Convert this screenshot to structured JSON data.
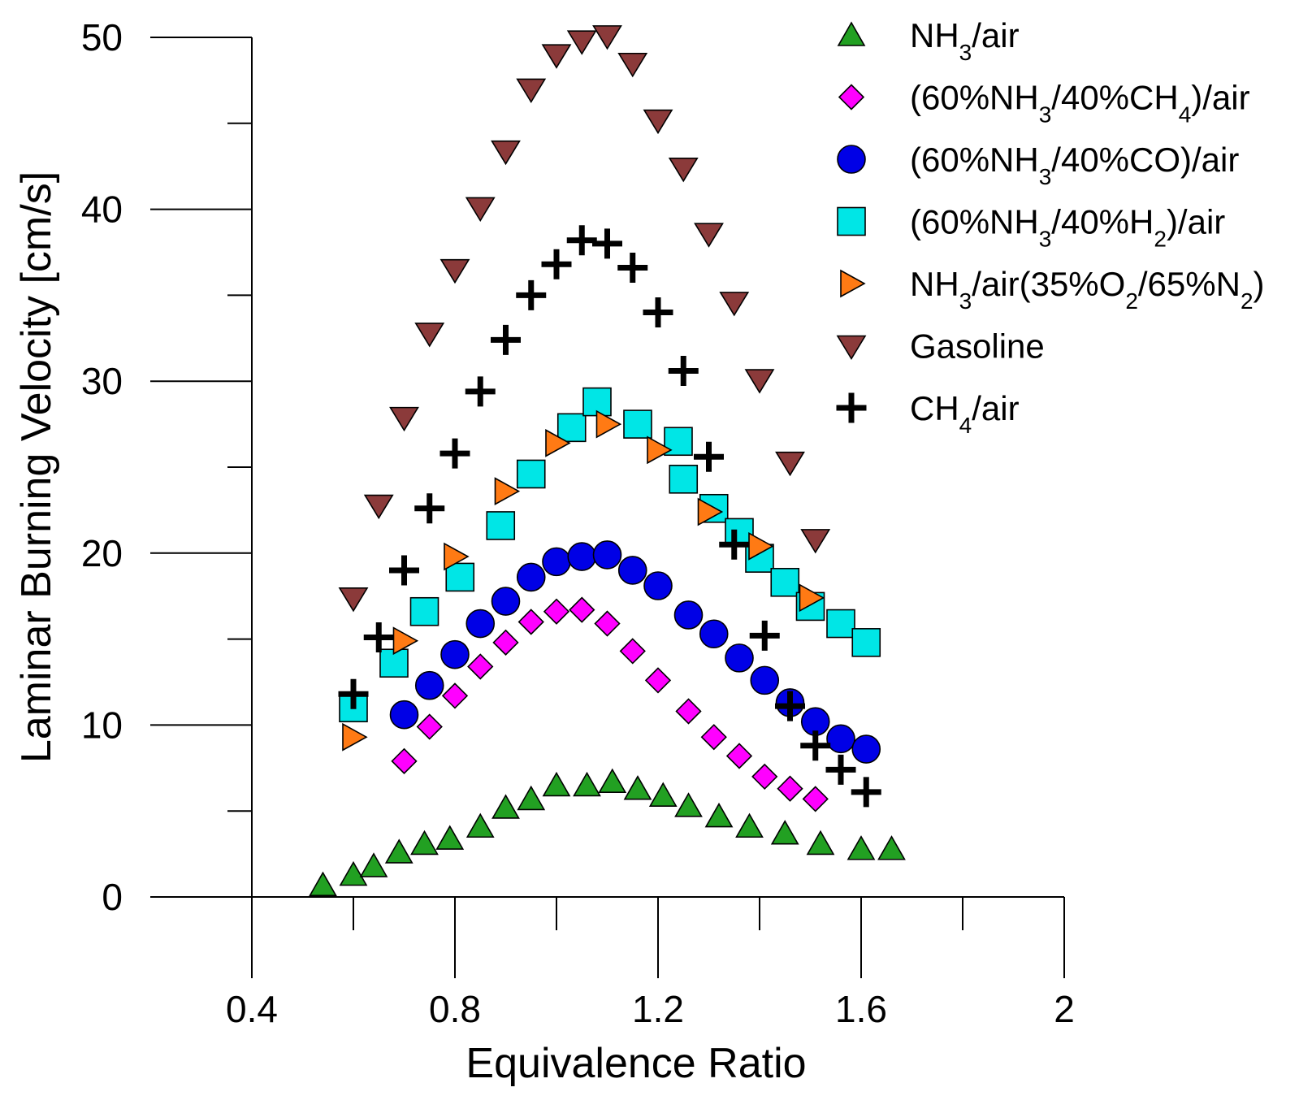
{
  "chart_data": {
    "type": "scatter",
    "title": "",
    "xlabel": "Equivalence Ratio",
    "ylabel": "Laminar Burning Velocity [cm/s]",
    "xlim": [
      0.2,
      2.0
    ],
    "ylim": [
      0,
      50
    ],
    "x_major_ticks": [
      {
        "value": 0.4,
        "label": "0.4"
      },
      {
        "value": 0.8,
        "label": "0.8"
      },
      {
        "value": 1.2,
        "label": "1.2"
      },
      {
        "value": 1.6,
        "label": "1.6"
      },
      {
        "value": 2.0,
        "label": "2"
      }
    ],
    "x_minor_ticks": [
      0.6,
      1.0,
      1.4,
      1.8
    ],
    "y_major_ticks": [
      {
        "value": 0,
        "label": "0"
      },
      {
        "value": 10,
        "label": "10"
      },
      {
        "value": 20,
        "label": "20"
      },
      {
        "value": 30,
        "label": "30"
      },
      {
        "value": 40,
        "label": "40"
      },
      {
        "value": 50,
        "label": "50"
      }
    ],
    "y_minor_ticks": [
      5,
      15,
      25,
      35,
      45
    ],
    "legend_position": "top-right",
    "series": [
      {
        "name": "NH3/air",
        "label_parts": [
          {
            "text": "NH",
            "sub": false
          },
          {
            "text": "3",
            "sub": true
          },
          {
            "text": "/air",
            "sub": false
          }
        ],
        "marker": "triangle-up",
        "color": "#22a022",
        "x": [
          0.54,
          0.6,
          0.64,
          0.69,
          0.74,
          0.79,
          0.85,
          0.9,
          0.95,
          1.0,
          1.06,
          1.11,
          1.16,
          1.21,
          1.26,
          1.32,
          1.38,
          1.45,
          1.52,
          1.6,
          1.66
        ],
        "y": [
          0.7,
          1.3,
          1.8,
          2.6,
          3.1,
          3.4,
          4.1,
          5.2,
          5.7,
          6.5,
          6.5,
          6.7,
          6.3,
          5.9,
          5.3,
          4.7,
          4.1,
          3.7,
          3.1,
          2.8,
          2.8
        ]
      },
      {
        "name": "(60%NH3/40%CH4)/air",
        "label_parts": [
          {
            "text": "(60%NH",
            "sub": false
          },
          {
            "text": "3",
            "sub": true
          },
          {
            "text": "/40%CH",
            "sub": false
          },
          {
            "text": "4",
            "sub": true
          },
          {
            "text": ")/air",
            "sub": false
          }
        ],
        "marker": "diamond",
        "color": "#ff00ff",
        "x": [
          0.7,
          0.75,
          0.8,
          0.85,
          0.9,
          0.95,
          1.0,
          1.05,
          1.1,
          1.15,
          1.2,
          1.26,
          1.31,
          1.36,
          1.41,
          1.46,
          1.51
        ],
        "y": [
          7.9,
          9.9,
          11.7,
          13.4,
          14.8,
          16.0,
          16.6,
          16.7,
          15.9,
          14.3,
          12.6,
          10.8,
          9.3,
          8.2,
          7.0,
          6.3,
          5.7
        ]
      },
      {
        "name": "(60%NH3/40%CO)/air",
        "label_parts": [
          {
            "text": "(60%NH",
            "sub": false
          },
          {
            "text": "3",
            "sub": true
          },
          {
            "text": "/40%CO)/air",
            "sub": false
          }
        ],
        "marker": "circle",
        "color": "#0000e6",
        "x": [
          0.7,
          0.75,
          0.8,
          0.85,
          0.9,
          0.95,
          1.0,
          1.05,
          1.1,
          1.15,
          1.2,
          1.26,
          1.31,
          1.36,
          1.41,
          1.46,
          1.51,
          1.56,
          1.61
        ],
        "y": [
          10.6,
          12.3,
          14.1,
          15.9,
          17.2,
          18.6,
          19.5,
          19.8,
          19.9,
          19.0,
          18.1,
          16.4,
          15.3,
          13.9,
          12.6,
          11.3,
          10.2,
          9.2,
          8.6
        ]
      },
      {
        "name": "(60%NH3/40%H2)/air",
        "label_parts": [
          {
            "text": "(60%NH",
            "sub": false
          },
          {
            "text": "3",
            "sub": true
          },
          {
            "text": "/40%H",
            "sub": false
          },
          {
            "text": "2",
            "sub": true
          },
          {
            "text": ")/air",
            "sub": false
          }
        ],
        "marker": "square",
        "color": "#00e6e6",
        "x": [
          0.6,
          0.68,
          0.74,
          0.81,
          0.89,
          0.95,
          1.03,
          1.08,
          1.16,
          1.24,
          1.25,
          1.31,
          1.36,
          1.4,
          1.45,
          1.5,
          1.56,
          1.61
        ],
        "y": [
          11.0,
          13.6,
          16.6,
          18.6,
          21.6,
          24.6,
          27.3,
          28.8,
          27.5,
          26.5,
          24.3,
          22.6,
          21.2,
          19.7,
          18.3,
          16.9,
          15.9,
          14.8
        ]
      },
      {
        "name": "NH3/air(35%O2/65%N2)",
        "label_parts": [
          {
            "text": "NH",
            "sub": false
          },
          {
            "text": "3",
            "sub": true
          },
          {
            "text": "/air(35%O",
            "sub": false
          },
          {
            "text": "2",
            "sub": true
          },
          {
            "text": "/65%N",
            "sub": false
          },
          {
            "text": "2",
            "sub": true
          },
          {
            "text": ")",
            "sub": false
          }
        ],
        "marker": "triangle-right",
        "color": "#ff7a14",
        "x": [
          0.6,
          0.7,
          0.8,
          0.9,
          1.0,
          1.1,
          1.2,
          1.3,
          1.4,
          1.5
        ],
        "y": [
          9.3,
          14.9,
          19.8,
          23.6,
          26.4,
          27.5,
          26.0,
          22.4,
          20.4,
          17.4
        ]
      },
      {
        "name": "Gasoline",
        "label_parts": [
          {
            "text": "Gasoline",
            "sub": false
          }
        ],
        "marker": "triangle-down",
        "color": "#8b3a3a",
        "x": [
          0.6,
          0.65,
          0.7,
          0.75,
          0.8,
          0.85,
          0.9,
          0.95,
          1.0,
          1.05,
          1.1,
          1.15,
          1.2,
          1.25,
          1.3,
          1.35,
          1.4,
          1.46,
          1.51
        ],
        "y": [
          17.4,
          22.8,
          27.9,
          32.8,
          36.5,
          40.1,
          43.4,
          47.0,
          49.0,
          49.8,
          50.1,
          48.5,
          45.2,
          42.4,
          38.6,
          34.6,
          30.1,
          25.3,
          20.8
        ]
      },
      {
        "name": "CH4/air",
        "label_parts": [
          {
            "text": "CH",
            "sub": false
          },
          {
            "text": "4",
            "sub": true
          },
          {
            "text": "/air",
            "sub": false
          }
        ],
        "marker": "plus",
        "color": "#000000",
        "x": [
          0.6,
          0.65,
          0.7,
          0.75,
          0.8,
          0.85,
          0.9,
          0.95,
          1.0,
          1.05,
          1.1,
          1.15,
          1.2,
          1.25,
          1.3,
          1.35,
          1.41,
          1.46,
          1.51,
          1.56,
          1.61
        ],
        "y": [
          11.8,
          15.1,
          19.0,
          22.6,
          25.8,
          29.4,
          32.4,
          35.0,
          36.8,
          38.2,
          38.0,
          36.6,
          34.0,
          30.6,
          25.6,
          20.5,
          15.2,
          11.1,
          8.8,
          7.4,
          6.1
        ]
      }
    ]
  }
}
